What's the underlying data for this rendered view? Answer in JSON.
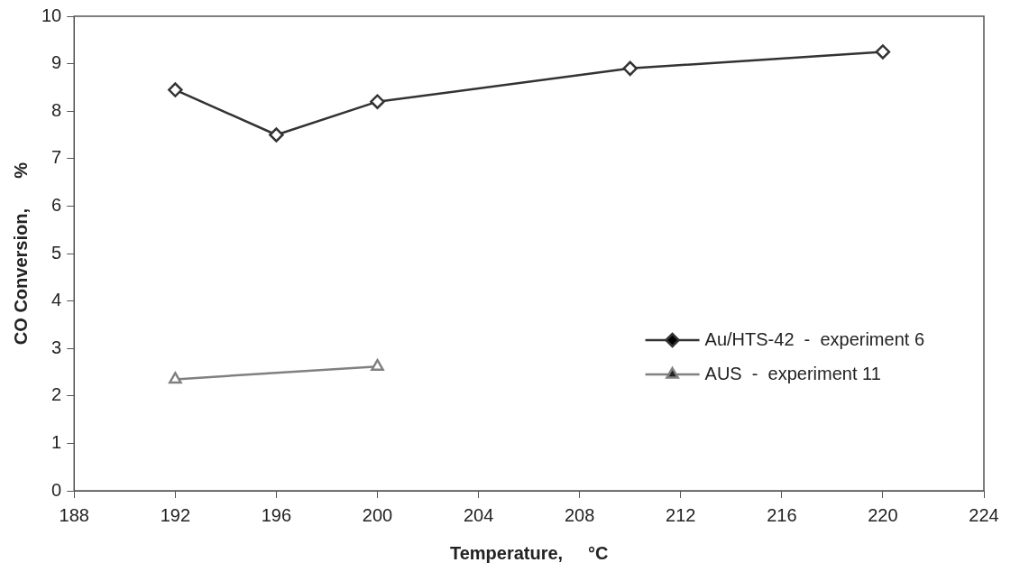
{
  "chart_data": {
    "type": "line",
    "xlabel": "Temperature,     °C",
    "ylabel": "CO Conversion,      %",
    "xlim": [
      188,
      224
    ],
    "xticks": [
      188,
      192,
      196,
      200,
      204,
      208,
      212,
      216,
      220,
      224
    ],
    "ylim": [
      0,
      10
    ],
    "yticks": [
      0,
      1,
      2,
      3,
      4,
      5,
      6,
      7,
      8,
      9,
      10
    ],
    "grid": false,
    "legend": "bottom right",
    "series": [
      {
        "name": "Au/HTS-42  -  experiment 6",
        "color": "#333333",
        "marker": "diamond",
        "x": [
          192,
          196,
          200,
          210,
          220
        ],
        "values": [
          8.45,
          7.5,
          8.2,
          8.9,
          9.25
        ]
      },
      {
        "name": "AUS  -  experiment 11",
        "color": "#808080",
        "marker": "triangle",
        "x": [
          192,
          200
        ],
        "values": [
          2.35,
          2.62
        ]
      }
    ]
  }
}
